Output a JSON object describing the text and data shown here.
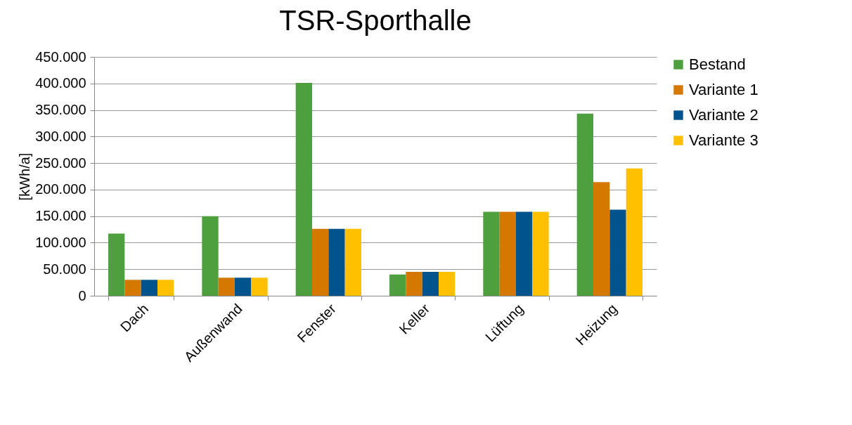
{
  "chart_data": {
    "type": "bar",
    "title": "TSR-Sporthalle",
    "ylabel": "[kWh/a]",
    "categories": [
      "Dach",
      "Außenwand",
      "Fenster",
      "Keller",
      "Lüftung",
      "Heizung"
    ],
    "series": [
      {
        "name": "Bestand",
        "color": "#4e9f3d",
        "values": [
          117000,
          150000,
          401000,
          40000,
          158000,
          343000
        ]
      },
      {
        "name": "Variante 1",
        "color": "#d57800",
        "values": [
          30000,
          34000,
          126000,
          45000,
          158000,
          214000
        ]
      },
      {
        "name": "Variante 2",
        "color": "#00538d",
        "values": [
          30000,
          34000,
          126000,
          45000,
          158000,
          162000
        ]
      },
      {
        "name": "Variante 3",
        "color": "#ffc000",
        "values": [
          30000,
          34000,
          126000,
          45000,
          158000,
          240000
        ]
      }
    ],
    "ylim": [
      0,
      450000
    ],
    "yticks": [
      {
        "value": 0,
        "label": "0"
      },
      {
        "value": 50000,
        "label": "50.000"
      },
      {
        "value": 100000,
        "label": "100.000"
      },
      {
        "value": 150000,
        "label": "150.000"
      },
      {
        "value": 200000,
        "label": "200.000"
      },
      {
        "value": 250000,
        "label": "250.000"
      },
      {
        "value": 300000,
        "label": "300.000"
      },
      {
        "value": 350000,
        "label": "350.000"
      },
      {
        "value": 400000,
        "label": "400.000"
      },
      {
        "value": 450000,
        "label": "450.000"
      }
    ],
    "grid": "y",
    "legend": "right"
  }
}
